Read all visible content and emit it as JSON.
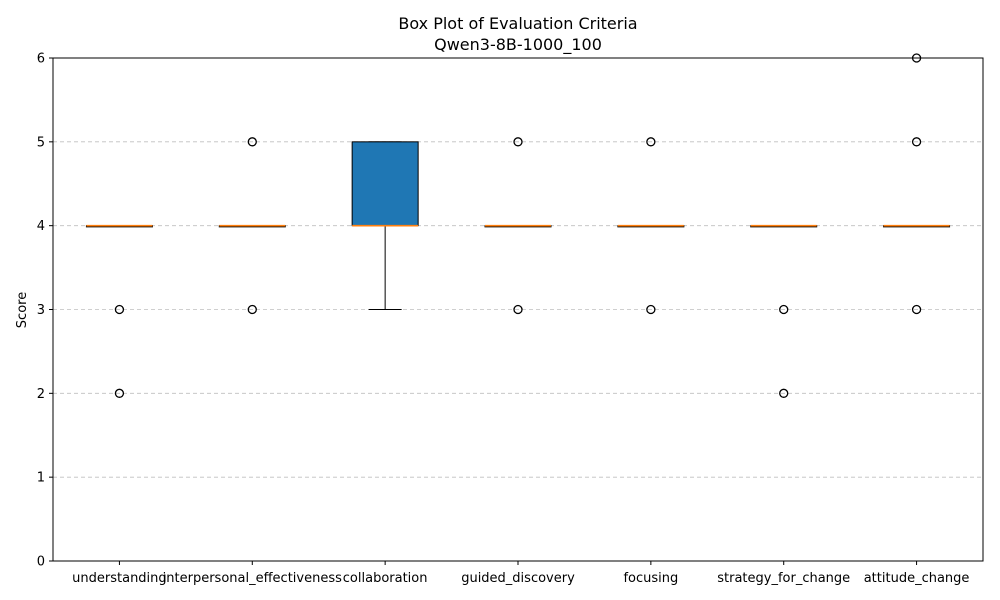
{
  "chart_data": {
    "type": "box",
    "title": "Box Plot of Evaluation Criteria",
    "subtitle": "Qwen3-8B-1000_100",
    "xlabel": "",
    "ylabel": "Score",
    "ylim": [
      0,
      6
    ],
    "yticks": [
      "0",
      "1",
      "2",
      "3",
      "4",
      "5",
      "6"
    ],
    "grid": "horizontal dashed",
    "box_color": "#1f77b4",
    "median_color": "#ff7f0e",
    "categories": [
      "understanding",
      "interpersonal_effectiveness",
      "collaboration",
      "guided_discovery",
      "focusing",
      "strategy_for_change",
      "attitude_change"
    ],
    "boxes": [
      {
        "q1": 4,
        "median": 4,
        "q3": 4,
        "whisker_low": 4,
        "whisker_high": 4,
        "outliers": [
          3,
          2
        ]
      },
      {
        "q1": 4,
        "median": 4,
        "q3": 4,
        "whisker_low": 4,
        "whisker_high": 4,
        "outliers": [
          5,
          3
        ]
      },
      {
        "q1": 4,
        "median": 4,
        "q3": 5,
        "whisker_low": 3,
        "whisker_high": 5,
        "outliers": []
      },
      {
        "q1": 4,
        "median": 4,
        "q3": 4,
        "whisker_low": 4,
        "whisker_high": 4,
        "outliers": [
          5,
          3
        ]
      },
      {
        "q1": 4,
        "median": 4,
        "q3": 4,
        "whisker_low": 4,
        "whisker_high": 4,
        "outliers": [
          5,
          3
        ]
      },
      {
        "q1": 4,
        "median": 4,
        "q3": 4,
        "whisker_low": 4,
        "whisker_high": 4,
        "outliers": [
          3,
          2
        ]
      },
      {
        "q1": 4,
        "median": 4,
        "q3": 4,
        "whisker_low": 4,
        "whisker_high": 4,
        "outliers": [
          6,
          5,
          3
        ]
      }
    ]
  }
}
